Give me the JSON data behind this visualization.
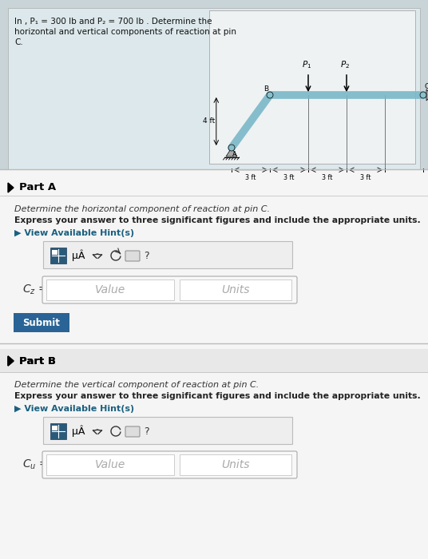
{
  "page_bg": "#c8d4d8",
  "top_panel_bg": "#dce8ec",
  "white_bg": "#f5f5f5",
  "content_bg": "#f0f0f0",
  "teal_beam": "#7ab8c8",
  "teal_dark": "#5a9aaa",
  "submit_color": "#2a6496",
  "hint_color": "#1a6080",
  "divider_color": "#bbbbbb",
  "toolbar_outer_bg": "#e8e8e8",
  "toolbar_icon_bg": "#2a5a7a",
  "input_box_bg": "#ffffff",
  "problem_line1": "In , P₁ = 300 lb and P₂ = 700 lb . Determine the",
  "problem_line2": "horizontal and vertical components of reaction at pin",
  "problem_line3": "C.",
  "part_a_desc1": "Determine the horizontal component of reaction at pin C.",
  "part_a_desc2": "Express your answer to three significant figures and include the appropriate units.",
  "part_a_hint": "▶ View Available Hint(s)",
  "part_a_label": "C_z",
  "part_b_desc1": "Determine the vertical component of reaction at pin C.",
  "part_b_desc2": "Express your answer to three significant figures and include the appropriate units.",
  "part_b_hint": "▶ View Available Hint(s)",
  "part_b_label": "C_u"
}
